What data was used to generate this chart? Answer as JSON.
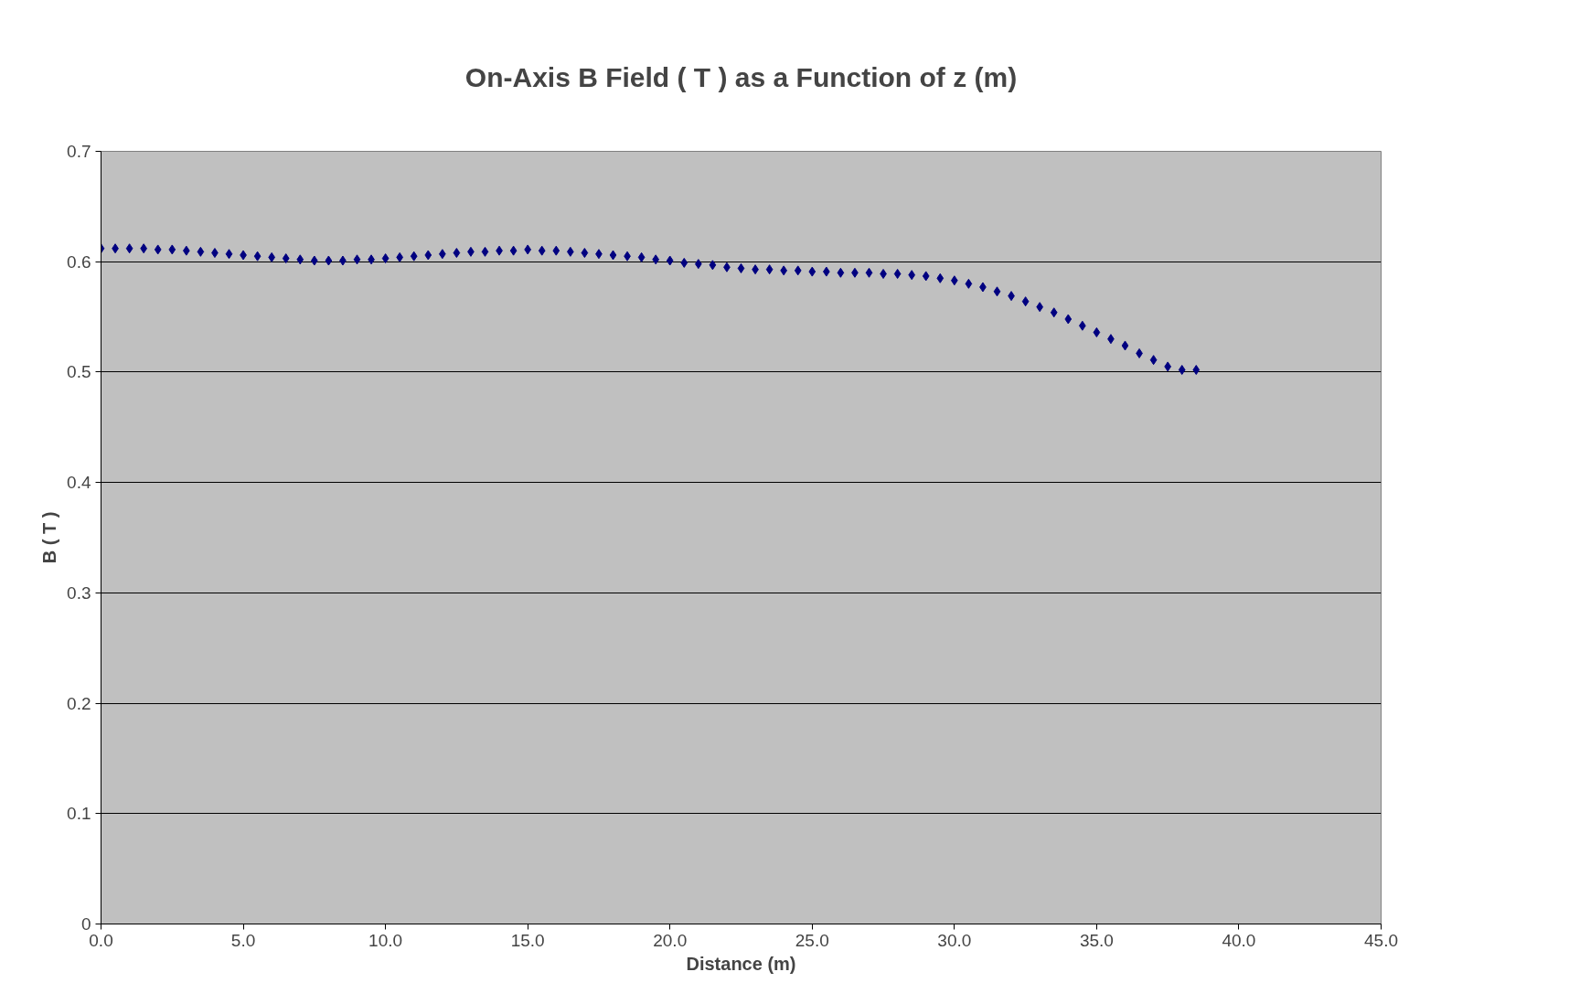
{
  "chart_data": {
    "type": "scatter",
    "title": "On-Axis B Field ( T ) as a Function of z (m)",
    "xlabel": "Distance (m)",
    "ylabel": "B ( T )",
    "x": [
      0,
      0.5,
      1,
      1.5,
      2,
      2.5,
      3,
      3.5,
      4,
      4.5,
      5,
      5.5,
      6,
      6.5,
      7,
      7.5,
      8,
      8.5,
      9,
      9.5,
      10,
      10.5,
      11,
      11.5,
      12,
      12.5,
      13,
      13.5,
      14,
      14.5,
      15,
      15.5,
      16,
      16.5,
      17,
      17.5,
      18,
      18.5,
      19,
      19.5,
      20,
      20.5,
      21,
      21.5,
      22,
      22.5,
      23,
      23.5,
      24,
      24.5,
      25,
      25.5,
      26,
      26.5,
      27,
      27.5,
      28,
      28.5,
      29,
      29.5,
      30,
      30.5,
      31,
      31.5,
      32,
      32.5,
      33,
      33.5,
      34,
      34.5,
      35,
      35.5,
      36,
      36.5,
      37,
      37.5,
      38,
      38.5
    ],
    "series": [
      {
        "color": "#000080",
        "values": [
          0.612,
          0.612,
          0.612,
          0.612,
          0.611,
          0.611,
          0.61,
          0.609,
          0.608,
          0.607,
          0.606,
          0.605,
          0.604,
          0.603,
          0.602,
          0.601,
          0.601,
          0.601,
          0.602,
          0.602,
          0.603,
          0.604,
          0.605,
          0.606,
          0.607,
          0.608,
          0.609,
          0.609,
          0.61,
          0.61,
          0.611,
          0.61,
          0.61,
          0.609,
          0.608,
          0.607,
          0.606,
          0.605,
          0.604,
          0.602,
          0.601,
          0.599,
          0.598,
          0.597,
          0.595,
          0.594,
          0.593,
          0.593,
          0.592,
          0.592,
          0.591,
          0.591,
          0.59,
          0.59,
          0.59,
          0.589,
          0.589,
          0.588,
          0.587,
          0.585,
          0.583,
          0.58,
          0.577,
          0.573,
          0.569,
          0.564,
          0.559,
          0.554,
          0.548,
          0.542,
          0.536,
          0.53,
          0.524,
          0.517,
          0.511,
          0.505,
          0.502,
          0.502
        ]
      }
    ],
    "marker": "diamond",
    "grid": "y",
    "xlim": [
      0,
      45
    ],
    "xticks": [
      {
        "value": 0,
        "label": "0.0"
      },
      {
        "value": 5,
        "label": "5.0"
      },
      {
        "value": 10,
        "label": "10.0"
      },
      {
        "value": 15,
        "label": "15.0"
      },
      {
        "value": 20,
        "label": "20.0"
      },
      {
        "value": 25,
        "label": "25.0"
      },
      {
        "value": 30,
        "label": "30.0"
      },
      {
        "value": 35,
        "label": "35.0"
      },
      {
        "value": 40,
        "label": "40.0"
      },
      {
        "value": 45,
        "label": "45.0"
      }
    ],
    "ylim": [
      0,
      0.7
    ],
    "yticks": [
      0,
      0.1,
      0.2,
      0.3,
      0.4,
      0.5,
      0.6,
      0.7
    ]
  }
}
